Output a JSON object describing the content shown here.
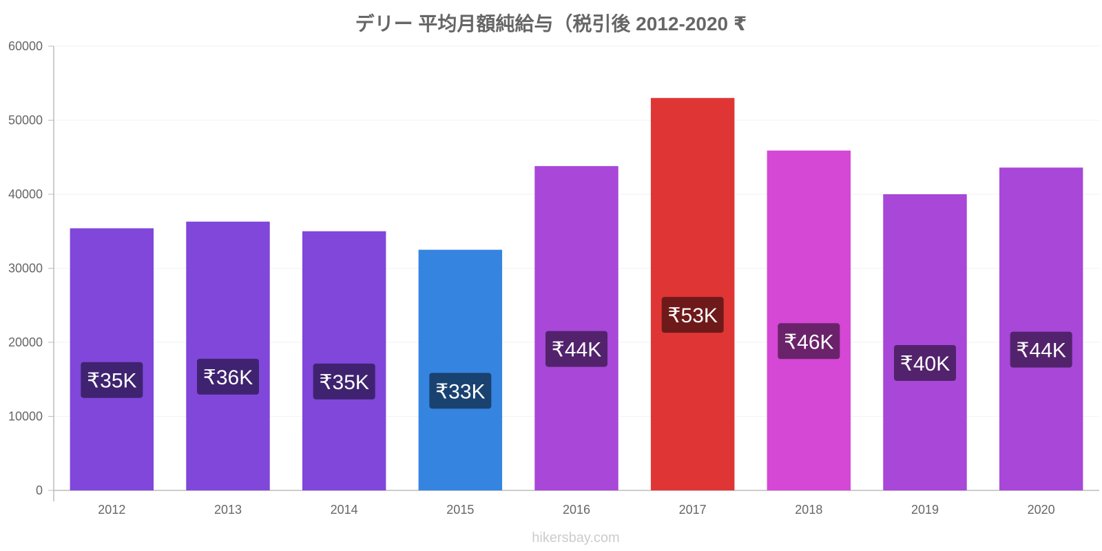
{
  "chart_data": {
    "type": "bar",
    "title": "デリー 平均月額純給与（税引後 2012-2020 ₹",
    "xlabel": "",
    "ylabel": "",
    "categories": [
      "2012",
      "2013",
      "2014",
      "2015",
      "2016",
      "2017",
      "2018",
      "2019",
      "2020"
    ],
    "values": [
      35400,
      36300,
      35000,
      32500,
      43800,
      53000,
      45900,
      40000,
      43600
    ],
    "value_labels": [
      "₹35K",
      "₹36K",
      "₹35K",
      "₹33K",
      "₹44K",
      "₹53K",
      "₹46K",
      "₹40K",
      "₹44K"
    ],
    "bar_colors": [
      "#8047da",
      "#8047da",
      "#8047da",
      "#3584e0",
      "#a847d8",
      "#e03535",
      "#d547d5",
      "#a847d8",
      "#a847d8"
    ],
    "label_bg_colors": [
      "#3f2370",
      "#3f2370",
      "#3f2370",
      "#1a4270",
      "#52236c",
      "#6e1a1a",
      "#6a236a",
      "#52236c",
      "#52236c"
    ],
    "ylim": [
      0,
      60000
    ],
    "yticks": [
      0,
      10000,
      20000,
      30000,
      40000,
      50000,
      60000
    ],
    "ytick_labels": [
      "0",
      "10000",
      "20000",
      "30000",
      "40000",
      "50000",
      "60000"
    ],
    "grid": true,
    "legend": "none"
  },
  "watermark": "hikersbay.com"
}
